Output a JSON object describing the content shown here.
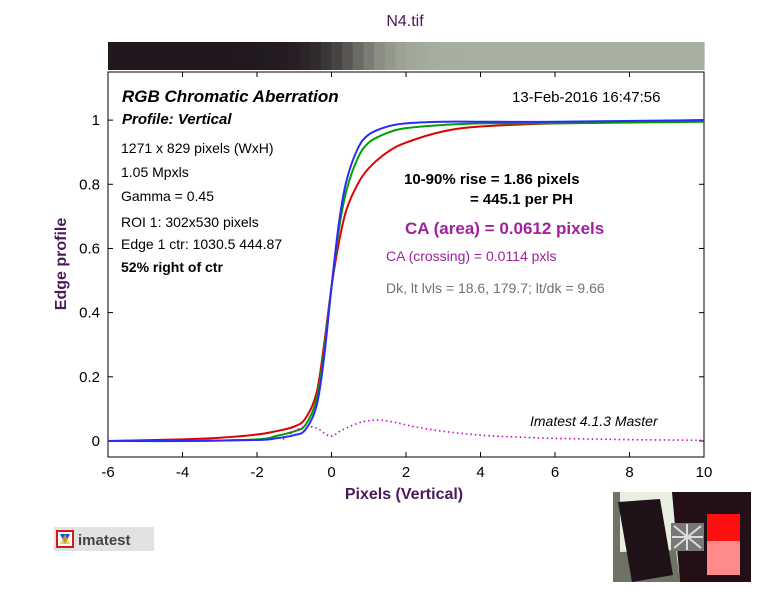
{
  "figure_title": "N4.tif",
  "info": {
    "title": "RGB Chromatic Aberration",
    "subtitle": "Profile: Vertical",
    "date": "13-Feb-2016 16:47:56",
    "lines": [
      "1271 x 829 pixels (WxH)",
      "1.05 Mpxls",
      "Gamma = 0.45",
      "ROI 1: 302x530 pixels",
      "Edge 1 ctr: 1030.5  444.87"
    ],
    "position": "52% right of ctr",
    "rise_line1": "10-90% rise = 1.86 pixels",
    "rise_line2": "= 445.1 per PH",
    "ca_area": "CA (area) = 0.0612 pixels",
    "ca_crossing": "CA (crossing) = 0.0114 pxls",
    "dk_levels": "Dk, lt lvls = 18.6, 179.7;  lt/dk = 9.66",
    "version": "Imatest 4.1.3  Master"
  },
  "logo": {
    "text": "imatest"
  },
  "colors": {
    "red": "#e00000",
    "green": "#00a000",
    "blue": "#2a2aff",
    "crossing": "#d000d0",
    "title": "#4a1a5a"
  },
  "chart_data": {
    "type": "line",
    "xlabel": "Pixels (Vertical)",
    "ylabel": "Edge profile",
    "xlim": [
      -6,
      10
    ],
    "ylim": [
      -0.05,
      1.15
    ],
    "x_ticks": [
      -6,
      -4,
      -2,
      0,
      2,
      4,
      6,
      8,
      10
    ],
    "y_ticks": [
      0,
      0.2,
      0.4,
      0.6,
      0.8,
      1
    ],
    "x_tick_labels": [
      "-6",
      "-4",
      "-2",
      "0",
      "2",
      "4",
      "6",
      "8",
      "10"
    ],
    "y_tick_labels": [
      "0",
      "0.2",
      "0.4",
      "0.6",
      "0.8",
      "1"
    ],
    "grid": false,
    "series": [
      {
        "color": "red",
        "x": [
          -6,
          -4,
          -3,
          -2,
          -1.5,
          -1,
          -0.7,
          -0.4,
          -0.2,
          0,
          0.2,
          0.4,
          0.7,
          1,
          1.5,
          2,
          3,
          4,
          6,
          10
        ],
        "y": [
          0,
          0.005,
          0.01,
          0.02,
          0.03,
          0.045,
          0.07,
          0.15,
          0.3,
          0.48,
          0.62,
          0.72,
          0.8,
          0.85,
          0.9,
          0.93,
          0.965,
          0.98,
          0.99,
          1.0
        ]
      },
      {
        "color": "green",
        "x": [
          -6,
          -4,
          -2,
          -1.5,
          -1,
          -0.7,
          -0.4,
          -0.2,
          0,
          0.2,
          0.4,
          0.7,
          1,
          1.5,
          2,
          3,
          4,
          6,
          10
        ],
        "y": [
          0,
          0,
          0.005,
          0.015,
          0.03,
          0.05,
          0.13,
          0.28,
          0.48,
          0.66,
          0.78,
          0.88,
          0.93,
          0.96,
          0.975,
          0.985,
          0.99,
          0.99,
          0.995
        ]
      },
      {
        "color": "blue",
        "x": [
          -6,
          -4,
          -2,
          -1.5,
          -1,
          -0.7,
          -0.4,
          -0.2,
          0,
          0.2,
          0.4,
          0.7,
          1,
          1.5,
          2,
          3,
          4,
          6,
          10
        ],
        "y": [
          0,
          0,
          0.003,
          0.008,
          0.018,
          0.035,
          0.11,
          0.26,
          0.48,
          0.68,
          0.81,
          0.91,
          0.955,
          0.98,
          0.99,
          0.995,
          0.995,
          0.995,
          1.0
        ]
      },
      {
        "color": "crossing",
        "style": "dotted",
        "x": [
          -1.3,
          -1,
          -0.7,
          -0.4,
          -0.2,
          0,
          0.3,
          0.7,
          1,
          1.3,
          1.7,
          2.2,
          3,
          4,
          5,
          6,
          7,
          8,
          9,
          10
        ],
        "y": [
          0.005,
          0.03,
          0.045,
          0.04,
          0.025,
          0.015,
          0.035,
          0.055,
          0.063,
          0.065,
          0.058,
          0.045,
          0.03,
          0.018,
          0.012,
          0.008,
          0.006,
          0.004,
          0.003,
          0.002
        ]
      }
    ]
  }
}
